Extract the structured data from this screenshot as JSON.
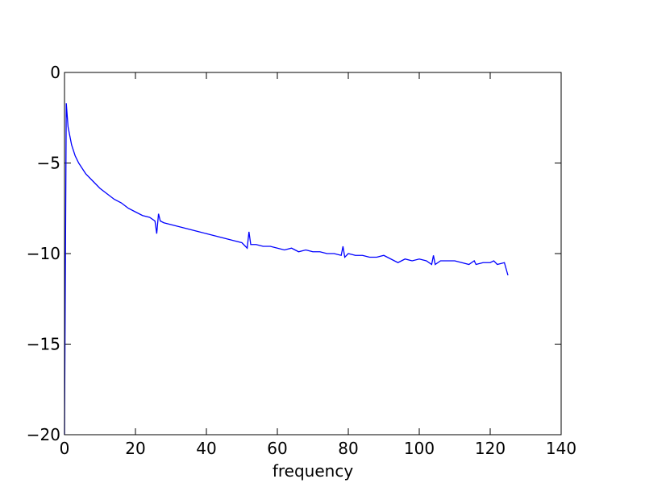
{
  "chart_data": {
    "type": "line",
    "xlabel": "frequency",
    "x": [
      0,
      0.5,
      1,
      2,
      3,
      4,
      5,
      6,
      8,
      10,
      12,
      14,
      16,
      18,
      20,
      22,
      24,
      25.5,
      26,
      26.5,
      27,
      28,
      30,
      32,
      34,
      36,
      38,
      40,
      42,
      44,
      46,
      48,
      50,
      51.5,
      52,
      52.5,
      54,
      56,
      58,
      60,
      62,
      64,
      66,
      68,
      70,
      72,
      74,
      76,
      78,
      78.5,
      79,
      80,
      82,
      84,
      86,
      88,
      90,
      92,
      94,
      96,
      98,
      100,
      102,
      103.5,
      104,
      104.5,
      106,
      108,
      110,
      112,
      114,
      115.5,
      116,
      118,
      120,
      121,
      122,
      124,
      125
    ],
    "series": [
      {
        "color": "#0000ff",
        "values": [
          -20,
          -1.7,
          -3.0,
          -4.0,
          -4.6,
          -5.0,
          -5.3,
          -5.6,
          -6.0,
          -6.4,
          -6.7,
          -7.0,
          -7.2,
          -7.5,
          -7.7,
          -7.9,
          -8.0,
          -8.2,
          -8.9,
          -7.8,
          -8.2,
          -8.3,
          -8.4,
          -8.5,
          -8.6,
          -8.7,
          -8.8,
          -8.9,
          -9.0,
          -9.1,
          -9.2,
          -9.3,
          -9.4,
          -9.7,
          -8.8,
          -9.5,
          -9.5,
          -9.6,
          -9.6,
          -9.7,
          -9.8,
          -9.7,
          -9.9,
          -9.8,
          -9.9,
          -9.9,
          -10.0,
          -10.0,
          -10.1,
          -9.6,
          -10.2,
          -10.0,
          -10.1,
          -10.1,
          -10.2,
          -10.2,
          -10.1,
          -10.3,
          -10.5,
          -10.3,
          -10.4,
          -10.3,
          -10.4,
          -10.6,
          -10.1,
          -10.6,
          -10.4,
          -10.4,
          -10.4,
          -10.5,
          -10.6,
          -10.4,
          -10.6,
          -10.5,
          -10.5,
          -10.4,
          -10.6,
          -10.5,
          -11.2
        ]
      }
    ],
    "xlim": [
      0,
      140
    ],
    "xticks": [
      0,
      20,
      40,
      60,
      80,
      100,
      120,
      140
    ],
    "ylim": [
      -20,
      0
    ],
    "yticks": [
      {
        "value": -20,
        "label": "−20"
      },
      {
        "value": -15,
        "label": "−15"
      },
      {
        "value": -10,
        "label": "−10"
      },
      {
        "value": -5,
        "label": "−5"
      },
      0
    ],
    "grid": false
  }
}
